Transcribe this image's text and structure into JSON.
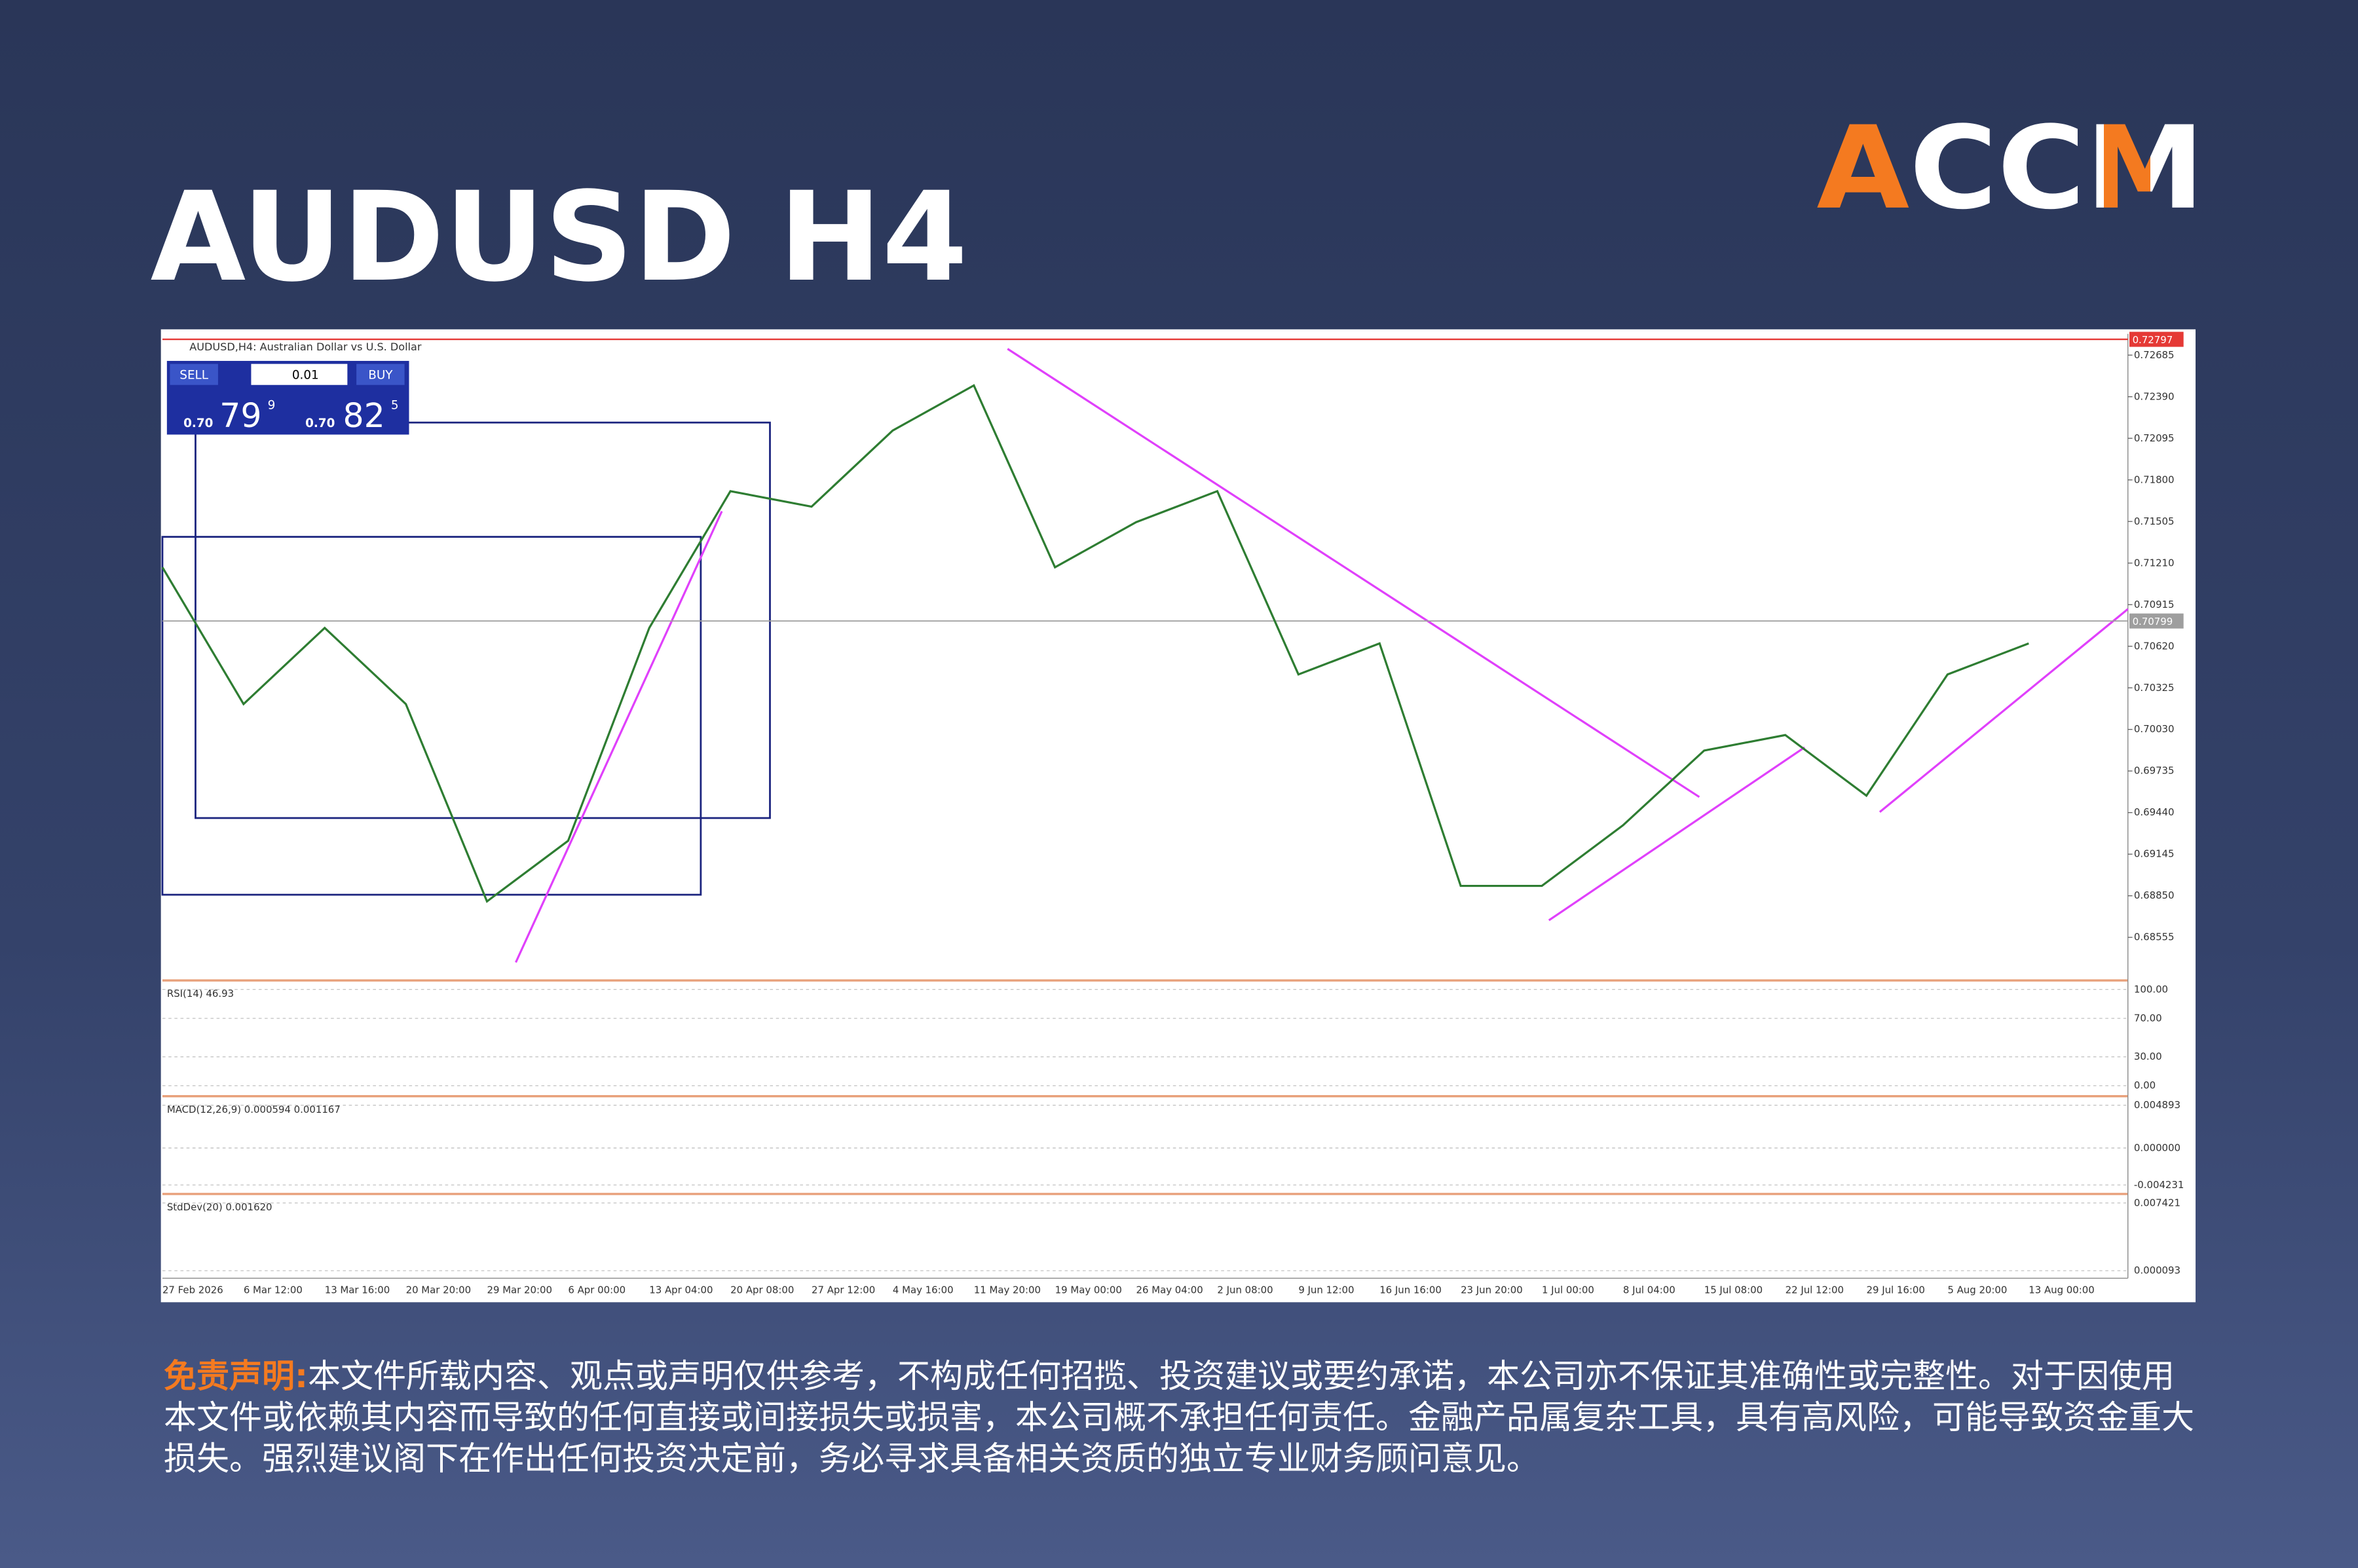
{
  "header": {
    "title": "AUDUSD H4",
    "logo": "ACCM"
  },
  "chart_data": {
    "type": "line",
    "title": "AUDUSD,H4: Australian Dollar vs U.S. Dollar",
    "trade_panel": {
      "sell": "SELL",
      "buy": "BUY",
      "lot": "0.01",
      "sell_prefix": "0.70",
      "sell_big": "79",
      "sell_small": "9",
      "buy_prefix": "0.70",
      "buy_big": "82",
      "buy_small": "5"
    },
    "categories": [
      "27 Feb 2026",
      "6 Mar 12:00",
      "13 Mar 16:00",
      "20 Mar 20:00",
      "29 Mar 20:00",
      "6 Apr 00:00",
      "13 Apr 04:00",
      "20 Apr 08:00",
      "27 Apr 12:00",
      "4 May 16:00",
      "11 May 20:00",
      "19 May 00:00",
      "26 May 04:00",
      "2 Jun 08:00",
      "9 Jun 12:00",
      "16 Jun 16:00",
      "23 Jun 20:00",
      "1 Jul 00:00",
      "8 Jul 04:00",
      "15 Jul 08:00",
      "22 Jul 12:00",
      "29 Jul 16:00",
      "5 Aug 20:00",
      "13 Aug 00:00"
    ],
    "values": [
      0.7118,
      0.7021,
      0.7075,
      0.7021,
      0.6881,
      0.6924,
      0.7075,
      0.7172,
      0.7161,
      0.7215,
      0.7247,
      0.7118,
      0.715,
      0.7172,
      0.7042,
      0.7064,
      0.6892,
      0.6892,
      0.6935,
      0.6988,
      0.6999,
      0.6956,
      0.7042,
      0.7064
    ],
    "color": "#2e7d32",
    "ylim": [
      0.6826,
      0.72836
    ],
    "yticks": [
      0.72685,
      {
        "value": 0.7239,
        "label": "0.72390"
      },
      0.72095,
      {
        "value": 0.718,
        "label": "0.71800"
      },
      0.71505,
      {
        "value": 0.7121,
        "label": "0.71210"
      },
      0.70915,
      {
        "value": 0.7062,
        "label": "0.70620"
      },
      0.70325,
      {
        "value": 0.7003,
        "label": "0.70030"
      },
      0.69735,
      {
        "value": 0.6944,
        "label": "0.69440"
      },
      0.69145,
      {
        "value": 0.6885,
        "label": "0.68850"
      },
      0.68555
    ],
    "high_line": 0.72797,
    "current_price": 0.70799,
    "indicators": [
      {
        "name": "RSI(14) 46.93",
        "ylim": [
          0,
          100
        ],
        "yticks": [
          {
            "value": 100,
            "label": "100.00"
          },
          {
            "value": 70,
            "label": "70.00"
          },
          {
            "value": 30,
            "label": "30.00"
          },
          {
            "value": 0,
            "label": "0.00"
          }
        ]
      },
      {
        "name": "MACD(12,26,9) 0.000594 0.001167",
        "ylim": [
          -0.004231,
          0.004893
        ],
        "yticks": [
          0.004893,
          {
            "value": 0,
            "label": "0.000000"
          },
          -0.004231
        ]
      },
      {
        "name": "StdDev(20) 0.001620",
        "ylim": [
          9.3e-05,
          0.007421
        ],
        "yticks": [
          0.007421,
          {
            "value": 9.3e-05,
            "label": "0.000093"
          }
        ]
      }
    ]
  },
  "disclaimer": {
    "label": "免责声明:",
    "text": "本文件所载内容、观点或声明仅供参考，不构成任何招揽、投资建议或要约承诺，本公司亦不保证其准确性或完整性。对于因使用本文件或依赖其内容而导致的任何直接或间接损失或损害，本公司概不承担任何责任。金融产品属复杂工具，具有高风险，可能导致资金重大损失。强烈建议阁下在作出任何投资决定前，务必寻求具备相关资质的独立专业财务顾问意见。"
  }
}
